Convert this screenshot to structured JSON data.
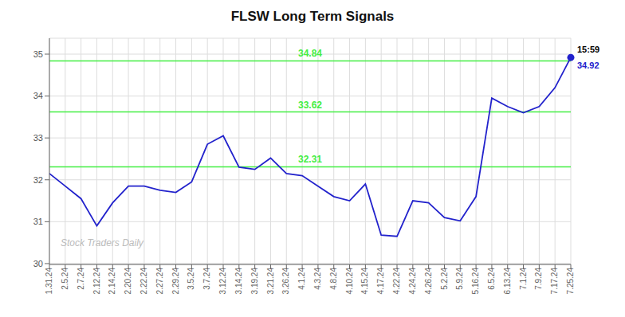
{
  "chart_data": {
    "type": "line",
    "title": "FLSW Long Term Signals",
    "categories": [
      "1.31.24",
      "2.5.24",
      "2.7.24",
      "2.12.24",
      "2.14.24",
      "2.20.24",
      "2.22.24",
      "2.27.24",
      "2.29.24",
      "3.5.24",
      "3.7.24",
      "3.12.24",
      "3.14.24",
      "3.19.24",
      "3.21.24",
      "3.26.24",
      "4.1.24",
      "4.3.24",
      "4.8.24",
      "4.10.24",
      "4.15.24",
      "4.17.24",
      "4.22.24",
      "4.24.24",
      "4.26.24",
      "5.2.24",
      "5.9.24",
      "5.16.24",
      "6.5.24",
      "6.13.24",
      "7.1.24",
      "7.9.24",
      "7.17.24",
      "7.25.24"
    ],
    "values": [
      32.15,
      31.85,
      31.55,
      30.9,
      31.45,
      31.85,
      31.85,
      31.75,
      31.7,
      31.95,
      32.85,
      33.05,
      32.3,
      32.25,
      32.52,
      32.15,
      32.1,
      31.85,
      31.6,
      31.5,
      31.9,
      30.68,
      30.65,
      31.5,
      31.45,
      31.1,
      31.02,
      31.6,
      33.95,
      33.75,
      33.6,
      33.75,
      34.2,
      34.92
    ],
    "color": "#2222cc",
    "ylim": [
      29.98,
      35.38
    ],
    "yticks": [
      30,
      31,
      32,
      33,
      34,
      35
    ],
    "grid": true,
    "hlines": [
      {
        "value": 32.31,
        "label": "32.31",
        "color": "#44ee44"
      },
      {
        "value": 33.62,
        "label": "33.62",
        "color": "#44ee44"
      },
      {
        "value": 34.84,
        "label": "34.84",
        "color": "#44ee44"
      }
    ],
    "annotations": [
      {
        "text": "15:59",
        "color": "#000000"
      },
      {
        "text": "34.92",
        "color": "#2222cc"
      }
    ],
    "watermark": {
      "text": "Stock Traders Daily",
      "color": "#bbbbbb"
    }
  }
}
